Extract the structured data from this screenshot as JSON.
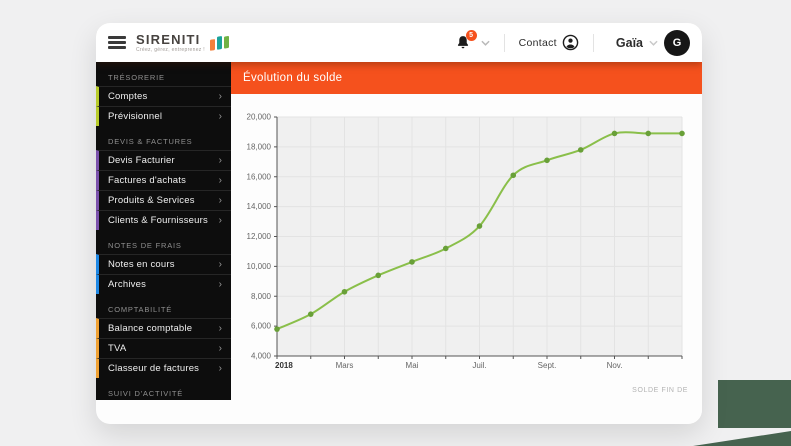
{
  "page": {
    "background": "#f0f0f1",
    "decor_green": "#46634f"
  },
  "header": {
    "logo": {
      "name": "SIRENITI",
      "tagline": "Créez, gérez, entreprenez !",
      "flag_colors": [
        "#f2803b",
        "#1ba39c",
        "#70b244"
      ]
    },
    "notifications": {
      "badge_count": "5",
      "badge_color": "#f5511d"
    },
    "contact_label": "Contact",
    "user": {
      "name": "Gaïa",
      "avatar_initial": "G",
      "avatar_color": "#161616"
    }
  },
  "sidebar": {
    "chevron": "›",
    "sections": [
      {
        "label": "TRÉSORERIE",
        "accent": "#b8cc2b",
        "items": [
          "Comptes",
          "Prévisionnel"
        ]
      },
      {
        "label": "DEVIS & FACTURES",
        "accent": "#7b52ab",
        "items": [
          "Devis Facturier",
          "Factures d'achats",
          "Produits & Services",
          "Clients & Fournisseurs"
        ]
      },
      {
        "label": "NOTES DE FRAIS",
        "accent": "#1e88e5",
        "items": [
          "Notes en cours",
          "Archives"
        ]
      },
      {
        "label": "COMPTABILITÉ",
        "accent": "#f0a132",
        "items": [
          "Balance comptable",
          "TVA",
          "Classeur de factures"
        ]
      },
      {
        "label": "SUIVI D'ACTIVITÉ",
        "accent": "#4caf50",
        "items": []
      }
    ]
  },
  "main": {
    "title": "Évolution du solde",
    "title_bar_color": "#f5511d"
  },
  "chart_data": {
    "type": "line",
    "title": "Évolution du solde",
    "values": [
      5800,
      6800,
      8300,
      9400,
      10300,
      11200,
      12700,
      16100,
      17100,
      17800,
      18900,
      18900,
      18900
    ],
    "x_tick_labels": [
      {
        "index": 0,
        "label": "2018",
        "bold": true
      },
      {
        "index": 2,
        "label": "Mars"
      },
      {
        "index": 4,
        "label": "Mai"
      },
      {
        "index": 6,
        "label": "Juil."
      },
      {
        "index": 8,
        "label": "Sept."
      },
      {
        "index": 10,
        "label": "Nov."
      }
    ],
    "ylim": [
      4000,
      20000
    ],
    "y_step": 2000,
    "y_tick_labels": [
      "4,000",
      "6,000",
      "8,000",
      "10,000",
      "12,000",
      "14,000",
      "16,000",
      "18,000",
      "20,000"
    ],
    "legend": "SOLDE FIN DE",
    "grid": true,
    "line_color": "#8abf4a",
    "marker_color": "#69a038",
    "plot_bg": "#f0f0f0",
    "grid_color": "#e3e3e3",
    "axis_color": "#555555"
  }
}
